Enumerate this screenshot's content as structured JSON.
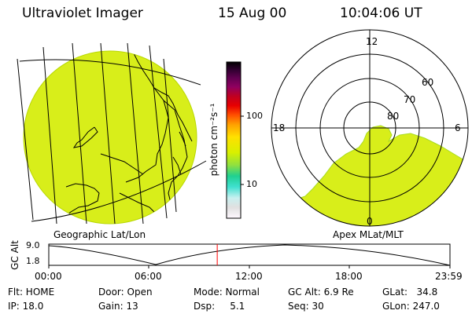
{
  "header": {
    "title": "Ultraviolet Imager",
    "date": "15 Aug 00",
    "time": "10:04:06 UT"
  },
  "colorbar": {
    "unit_label": "photon cm⁻²s⁻¹",
    "ticks": [
      "100",
      "10"
    ],
    "stops": [
      "#fff8ff",
      "#e0e0e0",
      "#c8f0f0",
      "#40e0d0",
      "#20d090",
      "#90e040",
      "#d8f000",
      "#ffe000",
      "#ffa000",
      "#ff5000",
      "#e80000",
      "#c00020",
      "#900060",
      "#600050",
      "#300030",
      "#000000"
    ]
  },
  "geo_panel": {
    "label": "Geographic Lat/Lon",
    "fill_color": "#d8ee1a"
  },
  "polar_panel": {
    "label": "Apex MLat/MLT",
    "lat_labels": [
      "60",
      "70",
      "80"
    ],
    "mlt_labels": {
      "top": "12",
      "left": "18",
      "right": "6",
      "bottom": "0"
    },
    "fill_color": "#d8ee1a"
  },
  "timeline": {
    "axis_label": "GC Alt",
    "y_ticks": [
      "9.0",
      "1.8"
    ],
    "x_ticks": [
      "00:00",
      "06:00",
      "12:00",
      "18:00",
      "23:59"
    ],
    "current_time_hours": 10.07,
    "marker_color": "#ff0000"
  },
  "status": {
    "flt": "Flt: HOME",
    "ip": "IP: 18.0",
    "door": "Door: Open",
    "gain": "Gain: 13",
    "mode": "Mode: Normal",
    "dsp": "Dsp:     5.1",
    "gc_alt": "GC Alt: 6.9 Re",
    "seq": "Seq: 30",
    "glat": "GLat:   34.8",
    "glon": "GLon: 247.0"
  }
}
